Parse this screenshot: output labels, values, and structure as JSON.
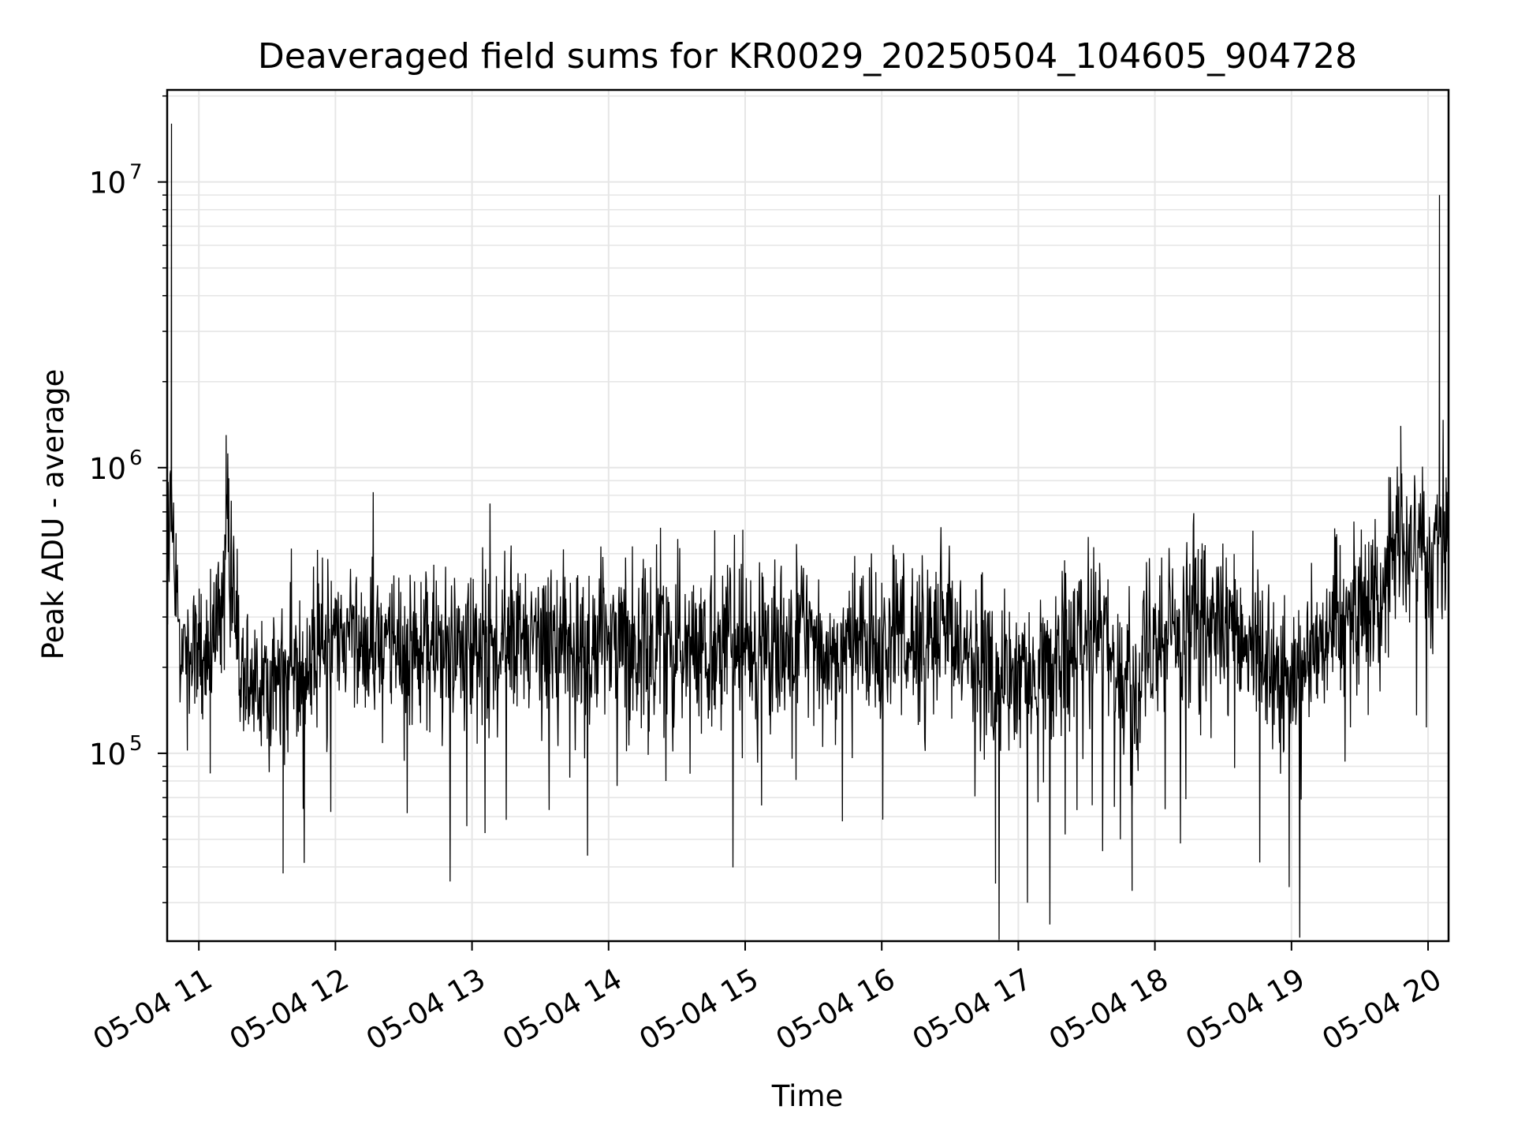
{
  "chart_data": {
    "type": "line",
    "title": "Deaveraged field sums for KR0029_20250504_104605_904728",
    "xlabel": "Time",
    "ylabel": "Peak ADU - average",
    "x_range": [
      "2025-05-04 10:46:05",
      "2025-05-04 20:09:00"
    ],
    "yscale": "log",
    "ylim": [
      22000,
      21000000
    ],
    "grid": true,
    "colors": {
      "line": "#000000",
      "grid": "#e6e6e6",
      "axes": "#000000"
    },
    "x_tick_labels": [
      "05-04 11",
      "05-04 12",
      "05-04 13",
      "05-04 14",
      "05-04 15",
      "05-04 16",
      "05-04 17",
      "05-04 18",
      "05-04 19",
      "05-04 20"
    ],
    "y_tick_labels": [
      {
        "base": "10",
        "exp": "5"
      },
      {
        "base": "10",
        "exp": "6"
      },
      {
        "base": "10",
        "exp": "7"
      }
    ],
    "series": [
      {
        "values_note_free": true,
        "points": [
          [
            "2025-05-04 10:46:05",
            700000
          ],
          [
            "2025-05-04 10:48:00",
            16000000
          ],
          [
            "2025-05-04 10:50:00",
            300000
          ],
          [
            "2025-05-04 10:55:00",
            200000
          ],
          [
            "2025-05-04 11:00:00",
            230000
          ],
          [
            "2025-05-04 11:05:00",
            85000
          ],
          [
            "2025-05-04 11:10:00",
            400000
          ],
          [
            "2025-05-04 11:12:00",
            1300000
          ],
          [
            "2025-05-04 11:15:00",
            380000
          ],
          [
            "2025-05-04 11:20:00",
            200000
          ],
          [
            "2025-05-04 11:30:00",
            180000
          ],
          [
            "2025-05-04 11:37:00",
            38000
          ],
          [
            "2025-05-04 11:45:00",
            210000
          ],
          [
            "2025-05-04 12:00:00",
            260000
          ],
          [
            "2025-05-04 12:30:00",
            240000
          ],
          [
            "2025-05-04 13:00:00",
            230000
          ],
          [
            "2025-05-04 13:30:00",
            250000
          ],
          [
            "2025-05-04 14:00:00",
            240000
          ],
          [
            "2025-05-04 14:30:00",
            250000
          ],
          [
            "2025-05-04 15:00:00",
            240000
          ],
          [
            "2025-05-04 15:30:00",
            230000
          ],
          [
            "2025-05-04 16:00:00",
            250000
          ],
          [
            "2025-05-04 16:30:00",
            260000
          ],
          [
            "2025-05-04 16:50:00",
            35000
          ],
          [
            "2025-05-04 17:04:00",
            30000
          ],
          [
            "2025-05-04 17:30:00",
            270000
          ],
          [
            "2025-05-04 17:50:00",
            33000
          ],
          [
            "2025-05-04 18:00:00",
            280000
          ],
          [
            "2025-05-04 18:30:00",
            270000
          ],
          [
            "2025-05-04 18:59:00",
            34000
          ],
          [
            "2025-05-04 19:15:00",
            290000
          ],
          [
            "2025-05-04 19:40:00",
            350000
          ],
          [
            "2025-05-04 19:48:00",
            1400000
          ],
          [
            "2025-05-04 20:00:00",
            430000
          ],
          [
            "2025-05-04 20:05:00",
            9000000
          ],
          [
            "2025-05-04 20:09:00",
            500000
          ]
        ]
      }
    ]
  }
}
